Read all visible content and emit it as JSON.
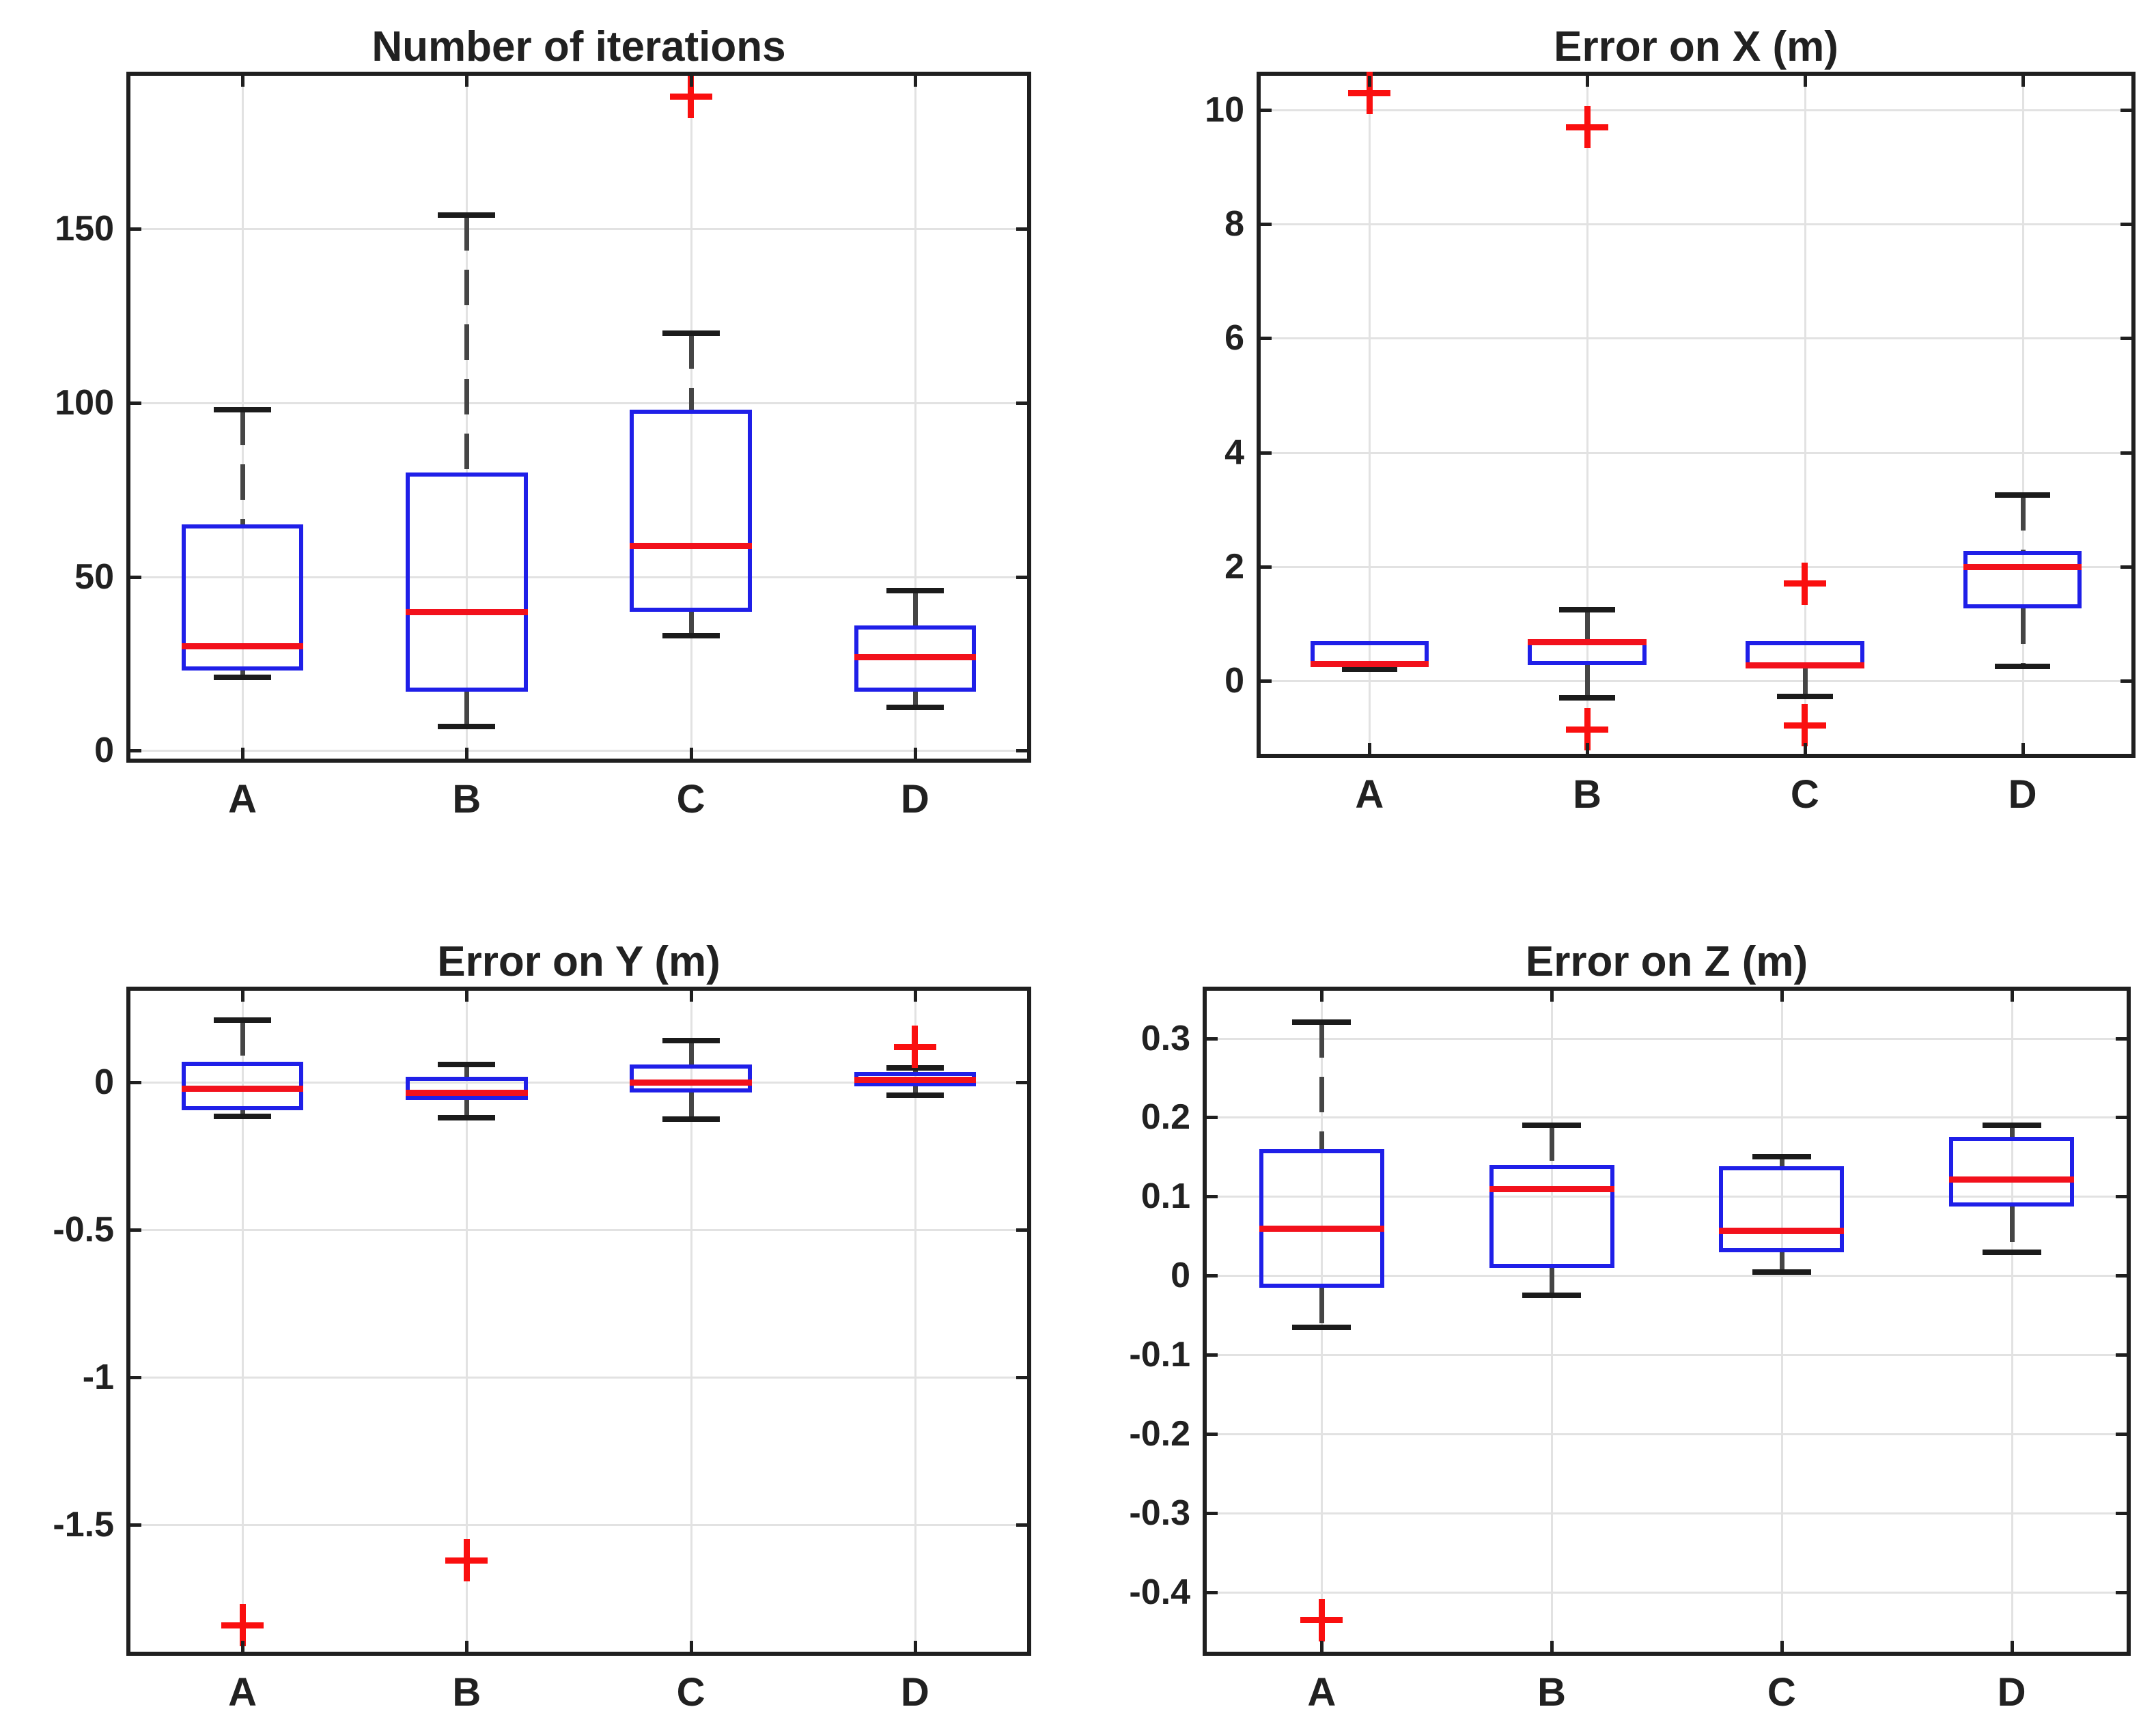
{
  "figure": {
    "background": "#ffffff"
  },
  "colors": {
    "box": "#1f1fe8",
    "median": "#f2111c",
    "whisker": "#454545",
    "cap": "#1b1b1b",
    "outlier": "#fa0f0f",
    "grid": "#e2e2e2",
    "axis": "#1f1f1f",
    "text": "#212121"
  },
  "chart_data": [
    {
      "type": "boxplot",
      "title": "Number of iterations",
      "categories": [
        "A",
        "B",
        "C",
        "D"
      ],
      "ylim": [
        -2.3,
        194
      ],
      "yticks": [
        0,
        50,
        100,
        150
      ],
      "yticklabels": [
        "0",
        "50",
        "100",
        "150"
      ],
      "grid": true,
      "series": [
        {
          "category": "A",
          "whisker_low": 21,
          "q1": 23,
          "median": 30,
          "q3": 65,
          "whisker_high": 98,
          "outliers": []
        },
        {
          "category": "B",
          "whisker_low": 7,
          "q1": 17,
          "median": 40,
          "q3": 80,
          "whisker_high": 154,
          "outliers": []
        },
        {
          "category": "C",
          "whisker_low": 33,
          "q1": 40,
          "median": 59,
          "q3": 98,
          "whisker_high": 120,
          "outliers": [
            188
          ]
        },
        {
          "category": "D",
          "whisker_low": 12.5,
          "q1": 17,
          "median": 27,
          "q3": 36,
          "whisker_high": 46,
          "outliers": []
        }
      ]
    },
    {
      "type": "boxplot",
      "title": "Error on X (m)",
      "categories": [
        "A",
        "B",
        "C",
        "D"
      ],
      "ylim": [
        -1.28,
        10.6
      ],
      "yticks": [
        0,
        2,
        4,
        6,
        8,
        10
      ],
      "yticklabels": [
        "0",
        "2",
        "4",
        "6",
        "8",
        "10"
      ],
      "grid": true,
      "series": [
        {
          "category": "A",
          "whisker_low": 0.2,
          "q1": 0.24,
          "median": 0.3,
          "q3": 0.7,
          "whisker_high": 0.7,
          "outliers": [
            10.3
          ]
        },
        {
          "category": "B",
          "whisker_low": -0.3,
          "q1": 0.27,
          "median": 0.68,
          "q3": 0.73,
          "whisker_high": 1.25,
          "outliers": [
            9.7,
            -0.85
          ]
        },
        {
          "category": "C",
          "whisker_low": -0.28,
          "q1": 0.22,
          "median": 0.28,
          "q3": 0.7,
          "whisker_high": 0.7,
          "outliers": [
            1.7,
            -0.78
          ]
        },
        {
          "category": "D",
          "whisker_low": 0.25,
          "q1": 1.27,
          "median": 2.0,
          "q3": 2.27,
          "whisker_high": 3.25,
          "outliers": []
        }
      ]
    },
    {
      "type": "boxplot",
      "title": "Error on Y (m)",
      "categories": [
        "A",
        "B",
        "C",
        "D"
      ],
      "ylim": [
        -1.93,
        0.31
      ],
      "yticks": [
        0,
        -0.5,
        -1,
        -1.5
      ],
      "yticklabels": [
        "0",
        "-0.5",
        "-1",
        "-1.5"
      ],
      "grid": true,
      "series": [
        {
          "category": "A",
          "whisker_low": -0.115,
          "q1": -0.095,
          "median": -0.02,
          "q3": 0.07,
          "whisker_high": 0.21,
          "outliers": [
            -1.84
          ]
        },
        {
          "category": "B",
          "whisker_low": -0.12,
          "q1": -0.06,
          "median": -0.035,
          "q3": 0.018,
          "whisker_high": 0.06,
          "outliers": [
            -1.62
          ]
        },
        {
          "category": "C",
          "whisker_low": -0.125,
          "q1": -0.035,
          "median": 0.0,
          "q3": 0.06,
          "whisker_high": 0.14,
          "outliers": []
        },
        {
          "category": "D",
          "whisker_low": -0.045,
          "q1": -0.015,
          "median": 0.01,
          "q3": 0.035,
          "whisker_high": 0.048,
          "outliers": [
            0.12
          ]
        }
      ]
    },
    {
      "type": "boxplot",
      "title": "Error on Z (m)",
      "categories": [
        "A",
        "B",
        "C",
        "D"
      ],
      "ylim": [
        -0.475,
        0.36
      ],
      "yticks": [
        0.3,
        0.2,
        0.1,
        0,
        -0.1,
        -0.2,
        -0.3,
        -0.4
      ],
      "yticklabels": [
        "0.3",
        "0.2",
        "0.1",
        "0",
        "-0.1",
        "-0.2",
        "-0.3",
        "-0.4"
      ],
      "grid": true,
      "series": [
        {
          "category": "A",
          "whisker_low": -0.065,
          "q1": -0.015,
          "median": 0.06,
          "q3": 0.16,
          "whisker_high": 0.32,
          "outliers": [
            -0.435
          ]
        },
        {
          "category": "B",
          "whisker_low": -0.025,
          "q1": 0.01,
          "median": 0.11,
          "q3": 0.14,
          "whisker_high": 0.19,
          "outliers": []
        },
        {
          "category": "C",
          "whisker_low": 0.005,
          "q1": 0.03,
          "median": 0.057,
          "q3": 0.138,
          "whisker_high": 0.15,
          "outliers": []
        },
        {
          "category": "D",
          "whisker_low": 0.03,
          "q1": 0.087,
          "median": 0.122,
          "q3": 0.175,
          "whisker_high": 0.19,
          "outliers": []
        }
      ]
    }
  ]
}
